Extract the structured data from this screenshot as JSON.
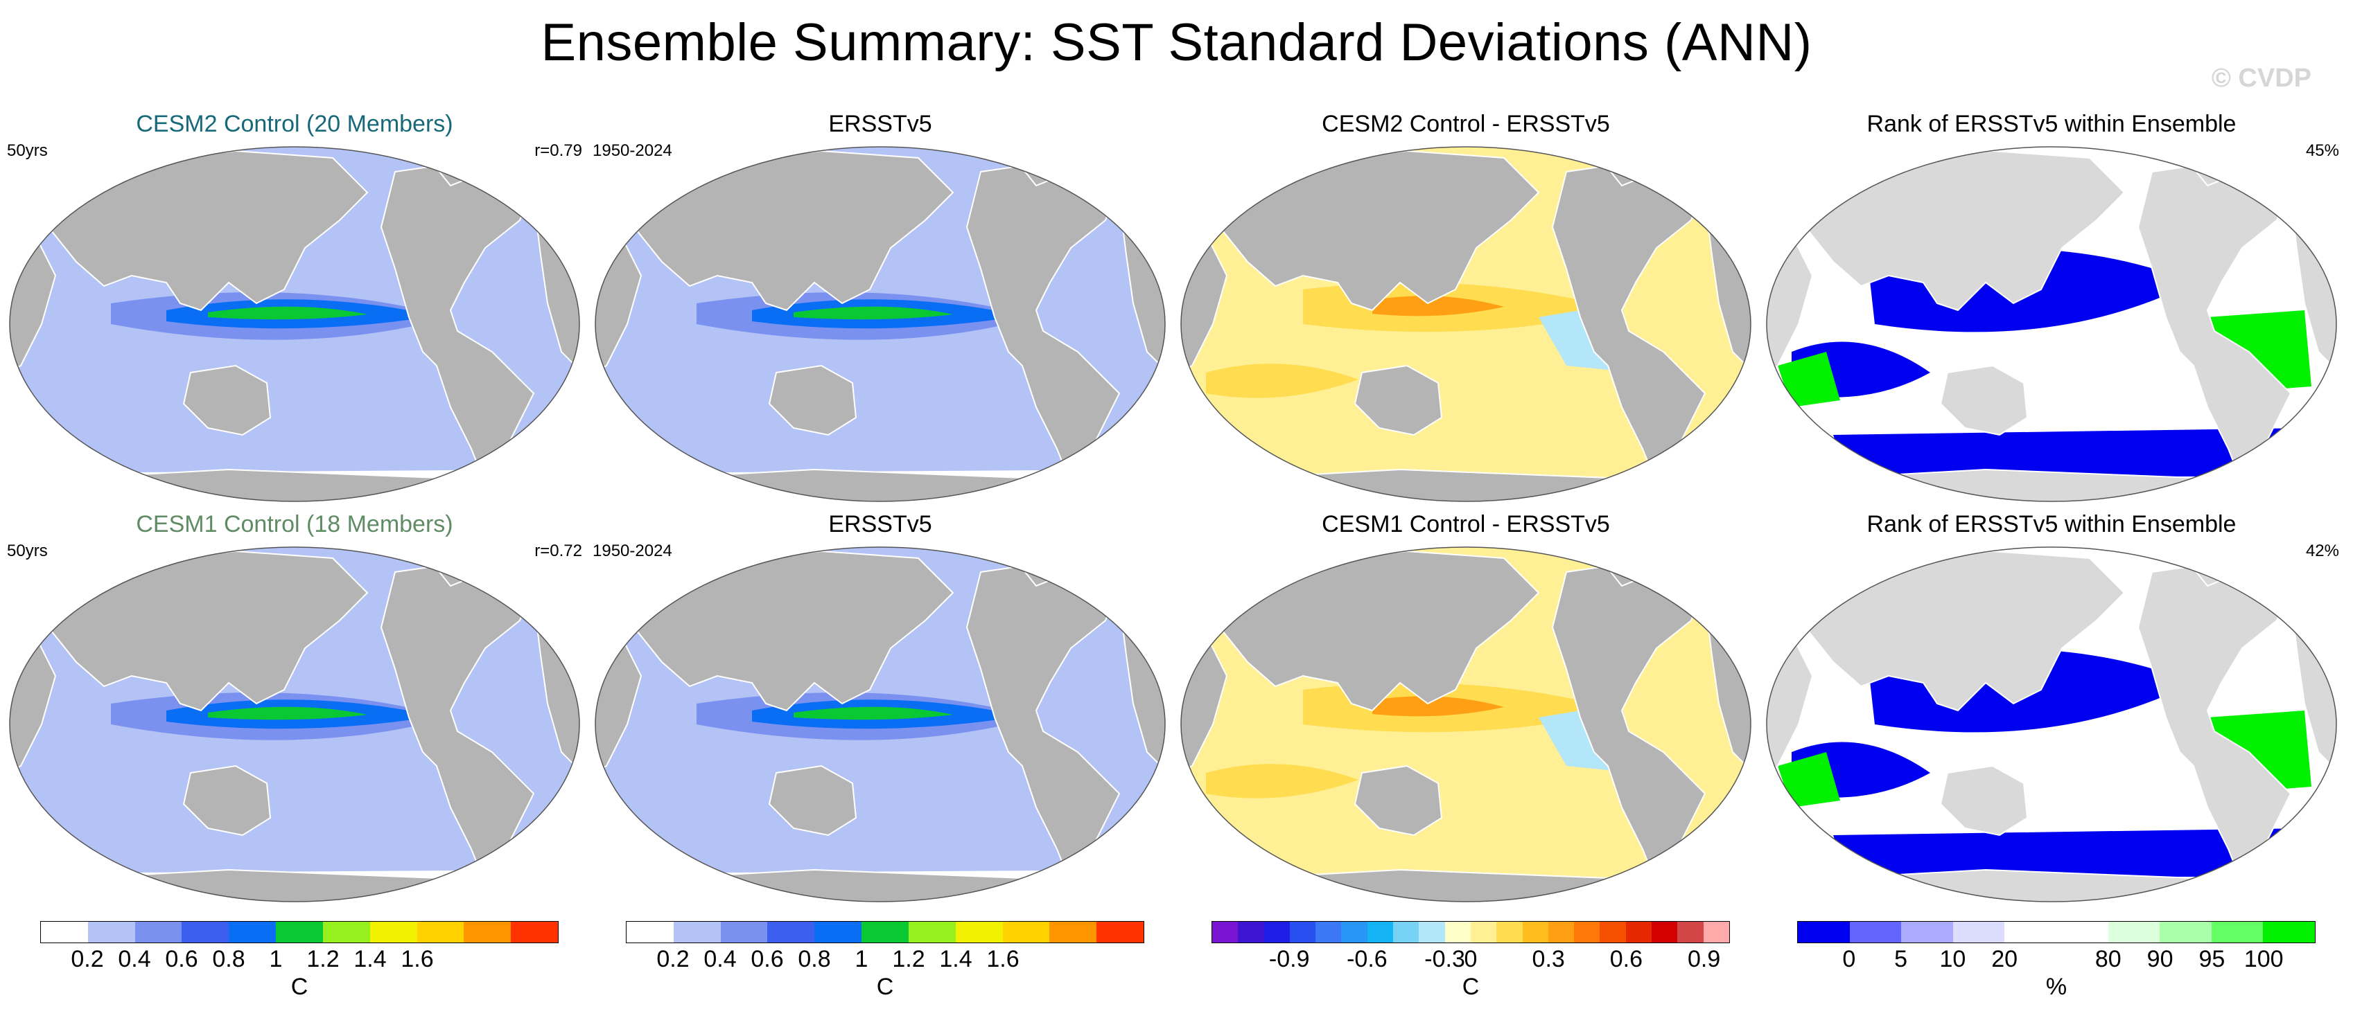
{
  "title": "Ensemble Summary: SST Standard Deviations (ANN)",
  "watermark": "© CVDP",
  "chart_data": [
    {
      "type": "heatmap",
      "title": "CESM2 Control (20 Members)",
      "title_color": "#17697a",
      "left_label": "50yrs",
      "right_label": "r=0.79",
      "colorbar": "std"
    },
    {
      "type": "heatmap",
      "title": "ERSSTv5",
      "left_label": "1950-2024",
      "right_label": "",
      "colorbar": "std"
    },
    {
      "type": "heatmap",
      "title": "CESM2 Control - ERSSTv5",
      "left_label": "",
      "right_label": "",
      "colorbar": "diff"
    },
    {
      "type": "heatmap",
      "title": "Rank of ERSSTv5 within Ensemble",
      "left_label": "",
      "right_label": "45%",
      "colorbar": "rank"
    },
    {
      "type": "heatmap",
      "title": "CESM1 Control (18 Members)",
      "title_color": "#5f8c64",
      "left_label": "50yrs",
      "right_label": "r=0.72",
      "colorbar": "std"
    },
    {
      "type": "heatmap",
      "title": "ERSSTv5",
      "left_label": "1950-2024",
      "right_label": "",
      "colorbar": "std"
    },
    {
      "type": "heatmap",
      "title": "CESM1 Control - ERSSTv5",
      "left_label": "",
      "right_label": "",
      "colorbar": "diff"
    },
    {
      "type": "heatmap",
      "title": "Rank of ERSSTv5 within Ensemble",
      "left_label": "",
      "right_label": "42%",
      "colorbar": "rank"
    }
  ],
  "colorbars": {
    "std": {
      "unit": "C",
      "colors": [
        "#ffffff",
        "#b4c3f5",
        "#7b91f0",
        "#3c5ff0",
        "#0a6ef5",
        "#0ac832",
        "#96f01e",
        "#f0f000",
        "#ffd200",
        "#ff9600",
        "#ff3200"
      ],
      "labels": [
        "0.2",
        "0.4",
        "0.6",
        "0.8",
        "1",
        "1.2",
        "1.4",
        "1.6"
      ]
    },
    "diff": {
      "unit": "C",
      "colors": [
        "#7814d2",
        "#3c14d2",
        "#1e1ee6",
        "#2850f0",
        "#3c78f5",
        "#2896f5",
        "#14b4f5",
        "#78d2f5",
        "#b4e6fa",
        "#ffffc8",
        "#fff096",
        "#ffdc50",
        "#ffbe1e",
        "#ffa014",
        "#ff780a",
        "#f55000",
        "#e62800",
        "#d20000",
        "#d24646",
        "#ffaaaa"
      ],
      "labels": [
        "-0.9",
        "-0.6",
        "-0.3",
        "0",
        "0.3",
        "0.6",
        "0.9"
      ]
    },
    "rank": {
      "unit": "%",
      "colors": [
        "#0000f0",
        "#6464ff",
        "#aaaaff",
        "#dcdcff",
        "#ffffff",
        "#ffffff",
        "#dcffdc",
        "#aaffaa",
        "#64ff64",
        "#00f000"
      ],
      "labels": [
        "0",
        "5",
        "10",
        "20",
        "80",
        "90",
        "95",
        "100"
      ]
    }
  }
}
